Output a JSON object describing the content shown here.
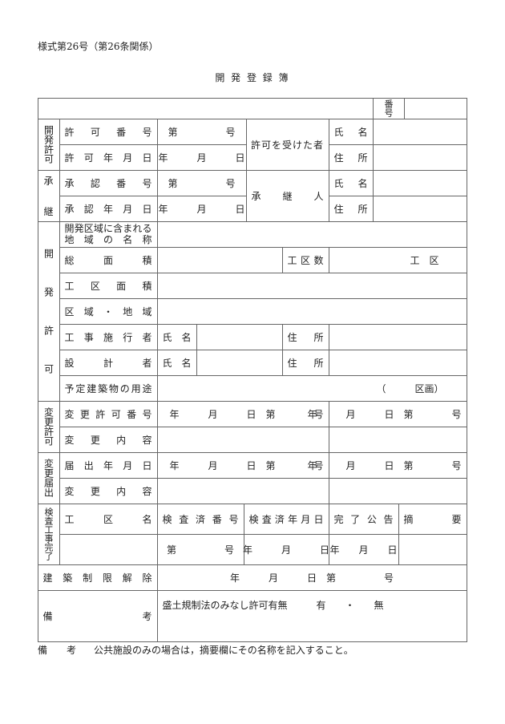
{
  "header": {
    "form_no": "様式第26号（第26条関係）",
    "title": "開 発 登 録 簿"
  },
  "top": {
    "number_label": "番号"
  },
  "permit": {
    "section": "開発許可",
    "number_label": "許可番号",
    "number_value": "第　　　　　号",
    "date_label": "許可年月日",
    "date_value": "年　　　月　　　日",
    "holder_label": "許可を受けた者",
    "name_label": "氏名",
    "address_label": "住所"
  },
  "succession": {
    "section_top": "承",
    "section_bottom": "継",
    "number_label": "承認番号",
    "number_value": "第　　　　　号",
    "date_label": "承認年月日",
    "date_value": "年　　　月　　　日",
    "successor_label": "承継人",
    "name_label": "氏名",
    "address_label": "住所"
  },
  "development": {
    "section": "開発許可",
    "area_names_label_1": "開発区域に含まれる",
    "area_names_label_2": "地域の名称",
    "total_area_label": "総面積",
    "zone_count_label": "工区数",
    "zone_unit": "工　区",
    "zone_area_label": "工区面積",
    "district_label": "区域・地域",
    "contractor_label": "工事施行者",
    "designer_label": "設計者",
    "name_label": "氏名",
    "address_label": "住所",
    "building_use_label": "予定建築物の用途",
    "building_use_value": "（　　　区画）"
  },
  "change_permit": {
    "section": "変更許可",
    "number_label": "変更許可番号",
    "date_value": "年　　　月　　　日　第　　　　号",
    "content_label": "変更内容"
  },
  "change_notice": {
    "section": "変更届出",
    "date_label": "届出年月日",
    "date_value": "年　　　月　　　日　第　　　　号",
    "content_label": "変更内容"
  },
  "inspection": {
    "section": "検査工事完了",
    "zone_name_label": "工区名",
    "inspection_no_label": "検査済番号",
    "inspection_date_label": "検査済年月日",
    "completion_notice_label": "完了公告",
    "summary_label": "摘要",
    "number_value": "第　　　　　号",
    "date_value": "年　　　月　　　日",
    "notice_date_value": "年　　月　　日"
  },
  "restriction": {
    "label": "建築制限解除",
    "value": "年　　　月　　　日　第　　　　　号"
  },
  "remarks": {
    "label": "備考",
    "value": "盛土規制法のみなし許可有無　　　有　　・　　無"
  },
  "footer": {
    "label": "備　　考",
    "text": "公共施設のみの場合は，摘要欄にその名称を記入すること。"
  }
}
